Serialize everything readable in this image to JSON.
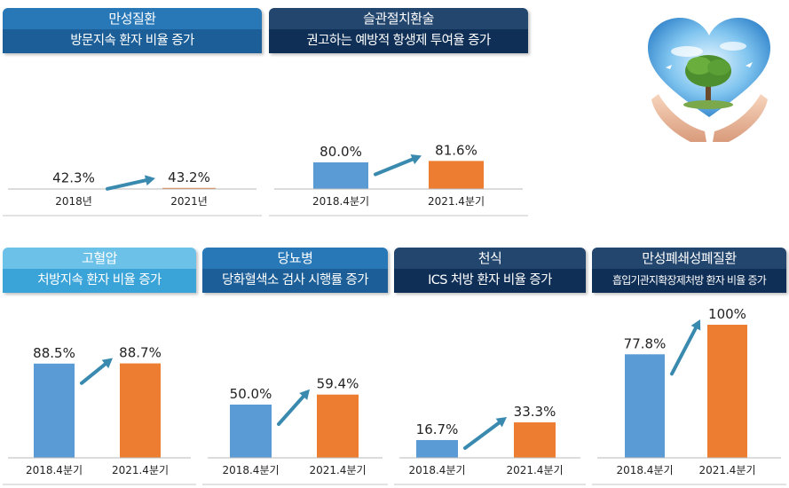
{
  "colors": {
    "before": "#5b9bd5",
    "after": "#ed7d31",
    "arrow": "#3a8ab0"
  },
  "illustration": {
    "icon": "heart-sky-tree-hands-icon"
  },
  "panels": [
    {
      "id": "chronic",
      "title": "만성질환",
      "subtitle": "방문지속 환자 비율 증가"
    },
    {
      "id": "surgery",
      "title": "슬관절치환술",
      "subtitle": "권고하는 예방적 항생제 투여율 증가"
    },
    {
      "id": "hypertension",
      "title": "고혈압",
      "subtitle": "처방지속 환자 비율 증가"
    },
    {
      "id": "diabetes",
      "title": "당뇨병",
      "subtitle": "당화혈색소 검사 시행률 증가"
    },
    {
      "id": "asthma",
      "title": "천식",
      "subtitle": "ICS 처방 환자 비율 증가"
    },
    {
      "id": "copd",
      "title": "만성폐쇄성폐질환",
      "subtitle": "흡입기관지확장제처방 환자 비율 증가"
    }
  ],
  "chart_data": [
    {
      "type": "bar",
      "categories": [
        "2018년",
        "2021년"
      ],
      "values": [
        42.3,
        43.2
      ],
      "labels": [
        "42.3%",
        "43.2%"
      ],
      "title": "만성질환 방문지속 환자 비율 증가"
    },
    {
      "type": "bar",
      "categories": [
        "2018.4분기",
        "2021.4분기"
      ],
      "values": [
        80.0,
        81.6
      ],
      "labels": [
        "80.0%",
        "81.6%"
      ],
      "title": "슬관절치환술 권고하는 예방적 항생제 투여율 증가"
    },
    {
      "type": "bar",
      "categories": [
        "2018.4분기",
        "2021.4분기"
      ],
      "values": [
        88.5,
        88.7
      ],
      "labels": [
        "88.5%",
        "88.7%"
      ],
      "title": "고혈압 처방지속 환자 비율 증가"
    },
    {
      "type": "bar",
      "categories": [
        "2018.4분기",
        "2021.4분기"
      ],
      "values": [
        50.0,
        59.4
      ],
      "labels": [
        "50.0%",
        "59.4%"
      ],
      "title": "당뇨병 당화혈색소 검사 시행률 증가"
    },
    {
      "type": "bar",
      "categories": [
        "2018.4분기",
        "2021.4분기"
      ],
      "values": [
        16.7,
        33.3
      ],
      "labels": [
        "16.7%",
        "33.3%"
      ],
      "title": "천식 ICS 처방 환자 비율 증가"
    },
    {
      "type": "bar",
      "categories": [
        "2018.4분기",
        "2021.4분기"
      ],
      "values": [
        77.8,
        100
      ],
      "labels": [
        "77.8%",
        "100%"
      ],
      "title": "만성폐쇄성폐질환 흡입기관지확장제처방 환자 비율 증가"
    }
  ]
}
